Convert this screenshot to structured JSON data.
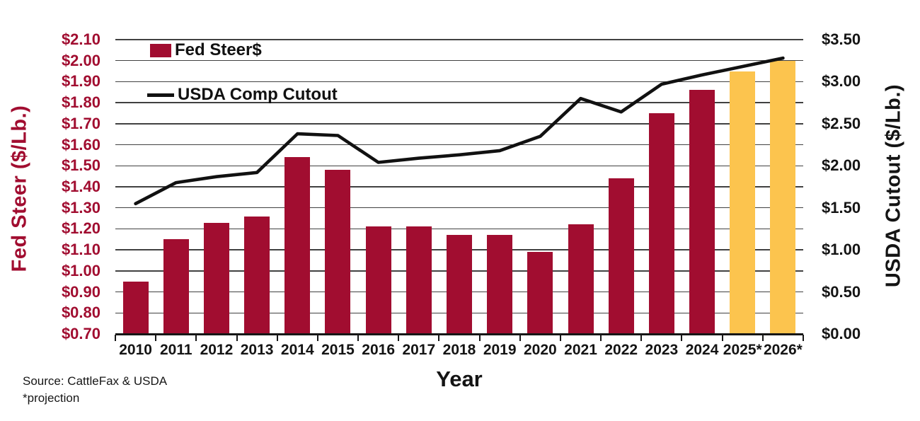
{
  "chart_data": {
    "type": "combo-bar-line",
    "title": "",
    "xlabel": "Year",
    "categories": [
      "2010",
      "2011",
      "2012",
      "2013",
      "2014",
      "2015",
      "2016",
      "2017",
      "2018",
      "2019",
      "2020",
      "2021",
      "2022",
      "2023",
      "2024",
      "2025*",
      "2026*"
    ],
    "series": [
      {
        "name": "Fed Steer$",
        "type": "bar",
        "axis": "left",
        "values": [
          0.95,
          1.15,
          1.23,
          1.26,
          1.54,
          1.48,
          1.21,
          1.21,
          1.17,
          1.17,
          1.09,
          1.22,
          1.44,
          1.75,
          1.86,
          1.95,
          2.0
        ],
        "projected_categories": [
          "2025*",
          "2026*"
        ]
      },
      {
        "name": "USDA Comp Cutout",
        "type": "line",
        "axis": "right",
        "values": [
          1.55,
          1.8,
          1.87,
          1.92,
          2.38,
          2.36,
          2.04,
          2.09,
          2.13,
          2.18,
          2.35,
          2.8,
          2.64,
          2.97,
          3.08,
          3.18,
          3.28
        ]
      }
    ],
    "left_axis": {
      "title": "Fed Steer ($/Lb.)",
      "min": 0.7,
      "max": 2.1,
      "tick_step": 0.1,
      "tick_labels": [
        "$2.10",
        "$2.00",
        "$1.90",
        "$1.80",
        "$1.70",
        "$1.60",
        "$1.50",
        "$1.40",
        "$1.30",
        "$1.20",
        "$1.10",
        "$1.00",
        "$0.90",
        "$0.80",
        "$0.70"
      ]
    },
    "right_axis": {
      "title": "USDA Cutout ($/Lb.)",
      "min": 0.0,
      "max": 3.5,
      "tick_step": 0.5,
      "tick_labels": [
        "$3.50",
        "$3.00",
        "$2.50",
        "$2.00",
        "$1.50",
        "$1.00",
        "$0.50",
        "$0.00"
      ]
    },
    "colors": {
      "bar": "#A10D30",
      "bar_projection": "#FCC44E",
      "line": "#111111",
      "left_axis_text": "#A10D30",
      "gridline": "#414141"
    },
    "grid": true,
    "legend_position": "top-left-inside"
  },
  "source": {
    "line1": "Source: CattleFax & USDA",
    "line2": "*projection"
  }
}
